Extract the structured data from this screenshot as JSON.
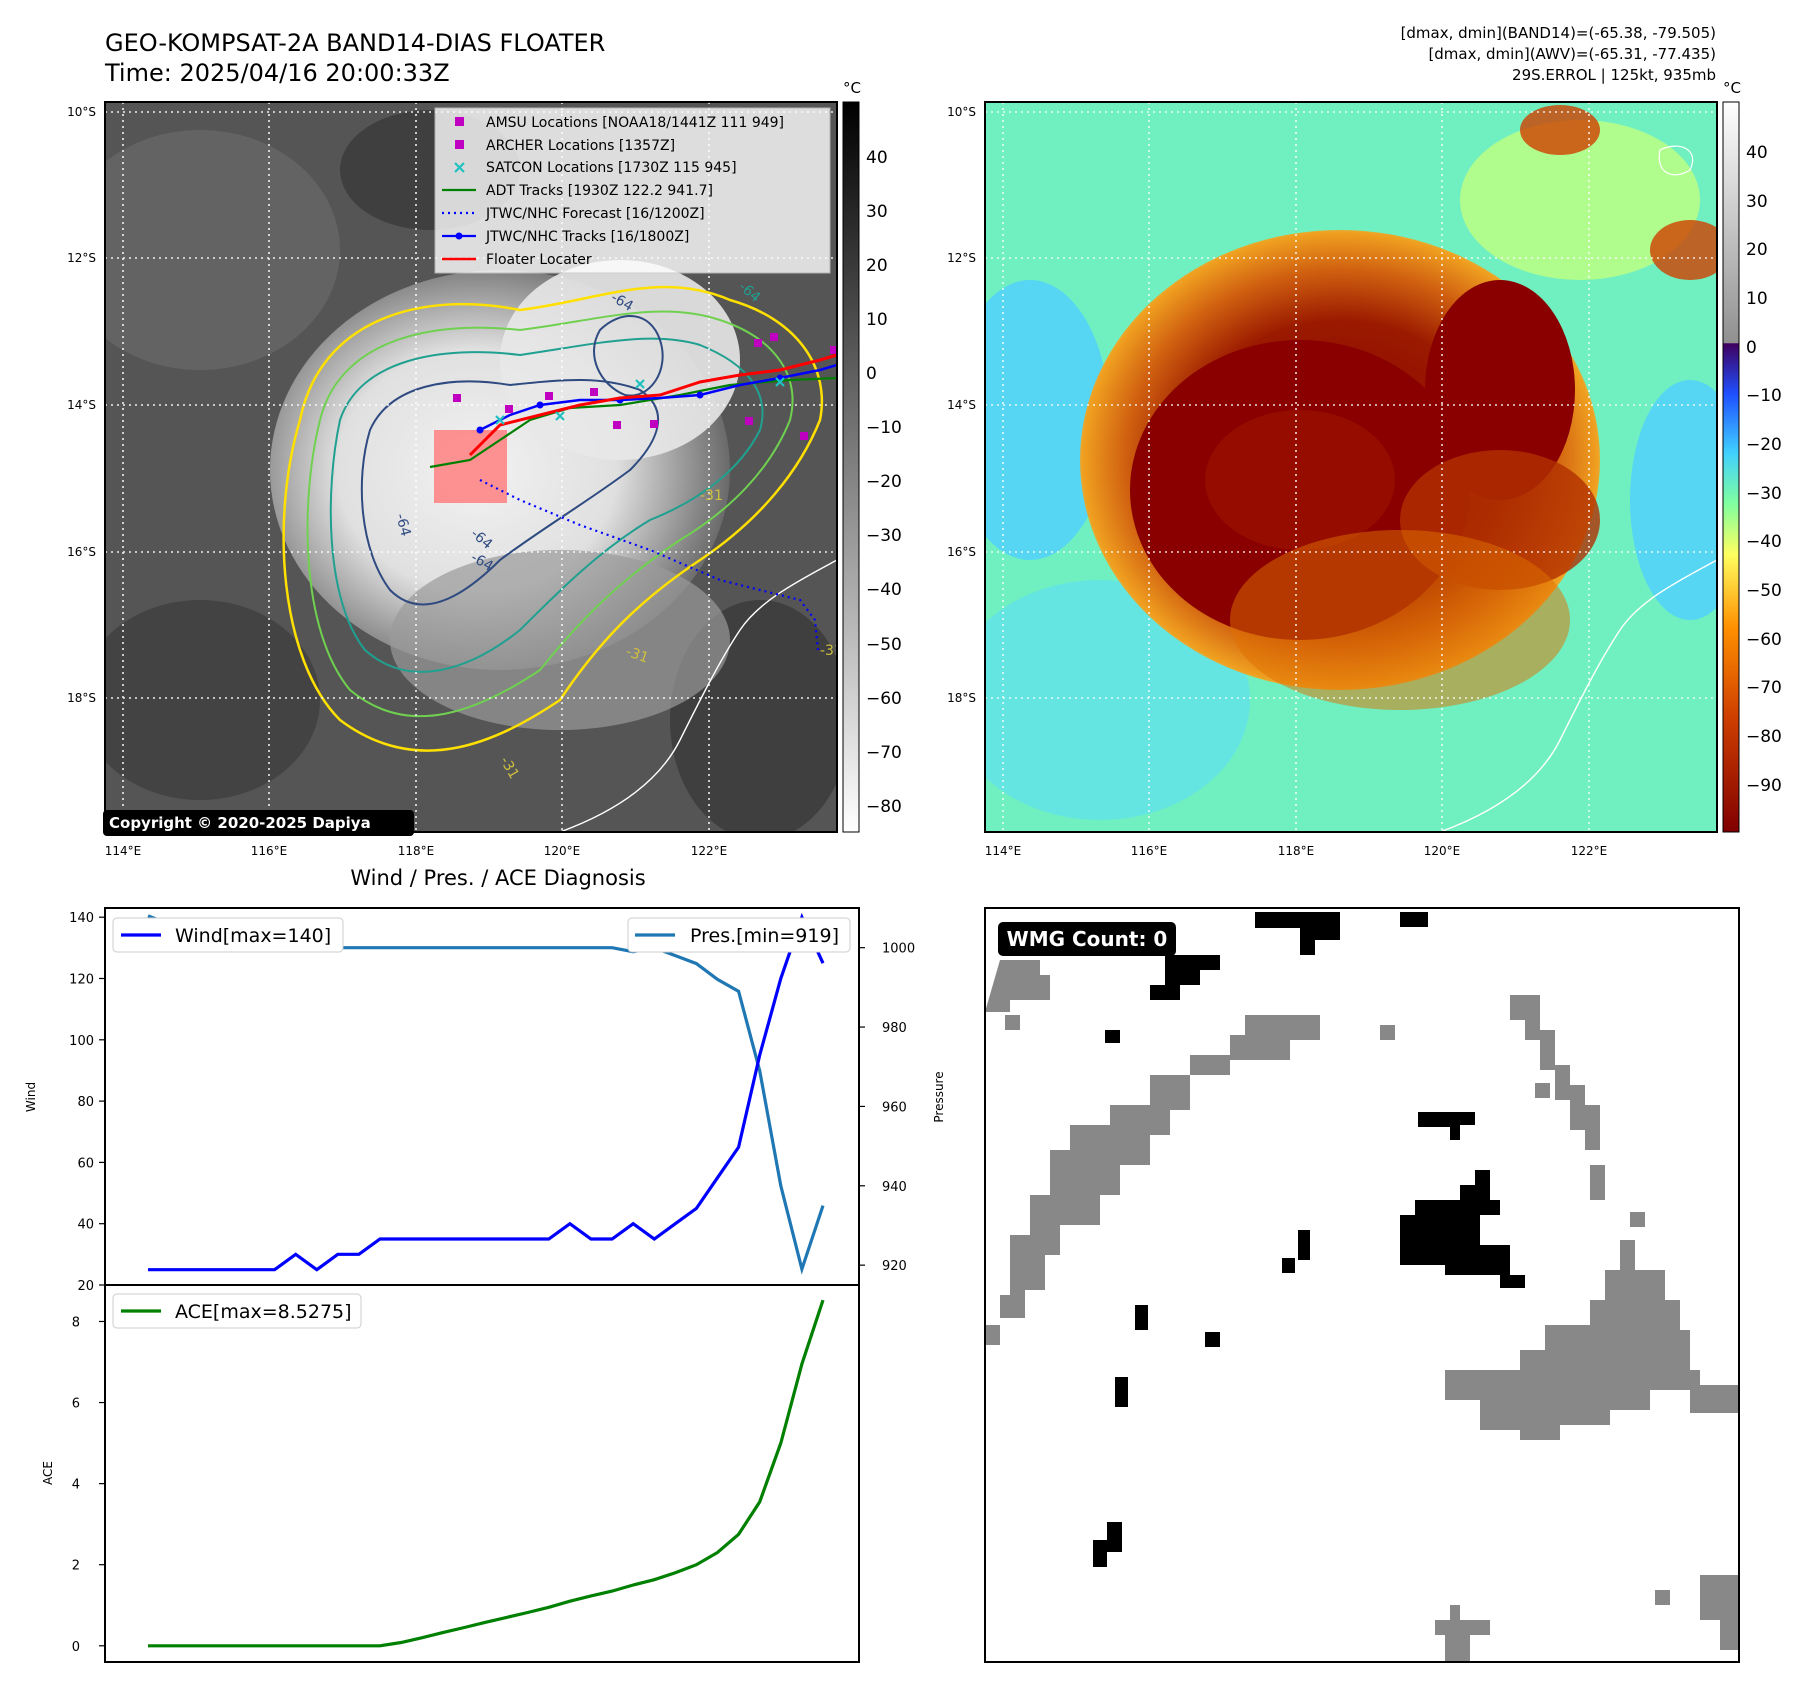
{
  "header": {
    "title_line1": "GEO-KOMPSAT-2A BAND14-DIAS FLOATER",
    "title_line2": "Time: 2025/04/16 20:00:33Z",
    "info_line1": "[dmax, dmin](BAND14)=(-65.38, -79.505)",
    "info_line2": "[dmax, dmin](AWV)=(-65.31, -77.435)",
    "info_line3": "29S.ERROL | 125kt, 935mb"
  },
  "maps": {
    "lat_labels": [
      "10°S",
      "12°S",
      "14°S",
      "16°S",
      "18°S"
    ],
    "lon_labels": [
      "114°E",
      "116°E",
      "118°E",
      "120°E",
      "122°E"
    ],
    "copyright": "Copyright © 2020-2025 Dapiya",
    "colorbar_unit": "°C",
    "gray_colorbar_ticks": [
      "40",
      "30",
      "20",
      "10",
      "0",
      "−10",
      "−20",
      "−30",
      "−40",
      "−50",
      "−60",
      "−70",
      "−80"
    ],
    "color_colorbar_ticks": [
      "40",
      "30",
      "20",
      "10",
      "0",
      "−10",
      "−20",
      "−30",
      "−40",
      "−50",
      "−60",
      "−70",
      "−80",
      "−90"
    ],
    "contour_labels": [
      "-64",
      "-64",
      "-64",
      "-31",
      "-31",
      "-31",
      "-31",
      "-64",
      "-64"
    ],
    "legend": [
      {
        "label": "AMSU Locations [NOAA18/1441Z 111 949]",
        "color": "#c000c0",
        "marker": "square"
      },
      {
        "label": "ARCHER Locations [1357Z]",
        "color": "#c000c0",
        "marker": "square"
      },
      {
        "label": "SATCON Locations [1730Z 115 945]",
        "color": "#20c0c0",
        "marker": "x"
      },
      {
        "label": "ADT Tracks [1930Z 122.2 941.7]",
        "color": "#008000",
        "marker": "line"
      },
      {
        "label": "JTWC/NHC Forecast [16/1200Z]",
        "color": "#0000ff",
        "marker": "dotted"
      },
      {
        "label": "JTWC/NHC Tracks [16/1800Z]",
        "color": "#0000ff",
        "marker": "line-dot"
      },
      {
        "label": "Floater Locater",
        "color": "#ff0000",
        "marker": "line"
      }
    ]
  },
  "diagnosis": {
    "title": "Wind / Pres. / ACE Diagnosis",
    "wind_legend": "Wind[max=140]",
    "pres_legend": "Pres.[min=919]",
    "ace_legend": "ACE[max=8.5275]",
    "wind_axis_label": "Wind",
    "pres_axis_label": "Pressure",
    "ace_axis_label": "ACE",
    "colors": {
      "wind": "#0000ff",
      "pres": "#1f77b4",
      "ace": "#008000"
    }
  },
  "wmg": {
    "badge": "WMG Count: 0"
  },
  "chart_data": [
    {
      "type": "line",
      "title": "Wind / Pres. / ACE Diagnosis",
      "x": [
        0,
        1,
        2,
        3,
        4,
        5,
        6,
        7,
        8,
        9,
        10,
        11,
        12,
        13,
        14,
        15,
        16,
        17,
        18,
        19,
        20,
        21,
        22,
        23,
        24,
        25,
        26,
        27,
        28,
        29,
        30,
        31,
        32
      ],
      "series": [
        {
          "name": "Wind[max=140]",
          "axis": "left",
          "values": [
            25,
            25,
            25,
            25,
            25,
            25,
            25,
            30,
            25,
            30,
            30,
            35,
            35,
            35,
            35,
            35,
            35,
            35,
            35,
            35,
            40,
            35,
            35,
            40,
            35,
            40,
            45,
            55,
            65,
            95,
            120,
            140,
            125
          ]
        },
        {
          "name": "Pres.[min=919]",
          "axis": "right",
          "values": [
            1008,
            1006,
            1006,
            1006,
            1004,
            1002,
            1001,
            1000,
            1001,
            1000,
            1000,
            1000,
            1000,
            1000,
            1000,
            1000,
            1000,
            1000,
            1000,
            1000,
            1000,
            1000,
            1000,
            999,
            1000,
            998,
            996,
            992,
            989,
            969,
            940,
            919,
            935
          ]
        }
      ],
      "ylabel": "Wind",
      "ylim": [
        20,
        143
      ],
      "y2label": "Pressure",
      "y2lim": [
        915,
        1010
      ],
      "yticks": [
        20,
        40,
        60,
        80,
        100,
        120,
        140
      ],
      "y2ticks": [
        920,
        940,
        960,
        980,
        1000
      ]
    },
    {
      "type": "line",
      "x": [
        0,
        1,
        2,
        3,
        4,
        5,
        6,
        7,
        8,
        9,
        10,
        11,
        12,
        13,
        14,
        15,
        16,
        17,
        18,
        19,
        20,
        21,
        22,
        23,
        24,
        25,
        26,
        27,
        28,
        29,
        30,
        31,
        32
      ],
      "series": [
        {
          "name": "ACE[max=8.5275]",
          "values": [
            0,
            0,
            0,
            0,
            0,
            0,
            0,
            0,
            0,
            0,
            0,
            0,
            0.08,
            0.2,
            0.33,
            0.45,
            0.58,
            0.7,
            0.82,
            0.95,
            1.1,
            1.23,
            1.35,
            1.5,
            1.63,
            1.8,
            2.0,
            2.3,
            2.75,
            3.55,
            5.0,
            6.95,
            8.5275
          ]
        }
      ],
      "ylabel": "ACE",
      "ylim": [
        -0.4,
        8.9
      ],
      "yticks": [
        0,
        2,
        4,
        6,
        8
      ]
    }
  ]
}
